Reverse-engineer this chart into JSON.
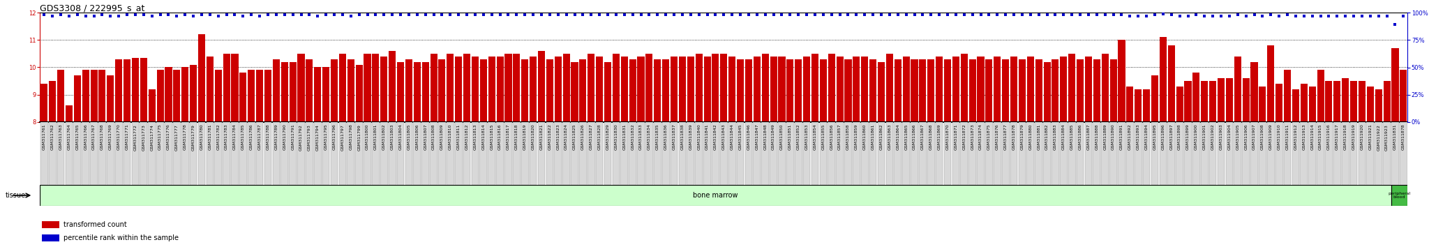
{
  "title": "GDS3308 / 222995_s_at",
  "samples": [
    "GSM311761",
    "GSM311762",
    "GSM311763",
    "GSM311764",
    "GSM311765",
    "GSM311766",
    "GSM311767",
    "GSM311768",
    "GSM311769",
    "GSM311770",
    "GSM311771",
    "GSM311772",
    "GSM311773",
    "GSM311774",
    "GSM311775",
    "GSM311776",
    "GSM311777",
    "GSM311778",
    "GSM311779",
    "GSM311780",
    "GSM311781",
    "GSM311782",
    "GSM311783",
    "GSM311784",
    "GSM311785",
    "GSM311786",
    "GSM311787",
    "GSM311788",
    "GSM311789",
    "GSM311790",
    "GSM311791",
    "GSM311792",
    "GSM311793",
    "GSM311794",
    "GSM311795",
    "GSM311796",
    "GSM311797",
    "GSM311798",
    "GSM311799",
    "GSM311800",
    "GSM311801",
    "GSM311802",
    "GSM311803",
    "GSM311804",
    "GSM311805",
    "GSM311806",
    "GSM311807",
    "GSM311808",
    "GSM311809",
    "GSM311810",
    "GSM311811",
    "GSM311812",
    "GSM311813",
    "GSM311814",
    "GSM311815",
    "GSM311816",
    "GSM311817",
    "GSM311818",
    "GSM311819",
    "GSM311820",
    "GSM311821",
    "GSM311822",
    "GSM311823",
    "GSM311824",
    "GSM311825",
    "GSM311826",
    "GSM311827",
    "GSM311828",
    "GSM311829",
    "GSM311830",
    "GSM311831",
    "GSM311832",
    "GSM311833",
    "GSM311834",
    "GSM311835",
    "GSM311836",
    "GSM311837",
    "GSM311838",
    "GSM311839",
    "GSM311840",
    "GSM311841",
    "GSM311842",
    "GSM311843",
    "GSM311844",
    "GSM311845",
    "GSM311846",
    "GSM311847",
    "GSM311848",
    "GSM311849",
    "GSM311850",
    "GSM311851",
    "GSM311852",
    "GSM311853",
    "GSM311854",
    "GSM311855",
    "GSM311856",
    "GSM311857",
    "GSM311858",
    "GSM311859",
    "GSM311860",
    "GSM311861",
    "GSM311862",
    "GSM311863",
    "GSM311864",
    "GSM311865",
    "GSM311866",
    "GSM311867",
    "GSM311868",
    "GSM311869",
    "GSM311870",
    "GSM311871",
    "GSM311872",
    "GSM311873",
    "GSM311874",
    "GSM311875",
    "GSM311876",
    "GSM311877",
    "GSM311878",
    "GSM311879",
    "GSM311880",
    "GSM311881",
    "GSM311882",
    "GSM311883",
    "GSM311884",
    "GSM311885",
    "GSM311886",
    "GSM311887",
    "GSM311888",
    "GSM311889",
    "GSM311890",
    "GSM311891",
    "GSM311892",
    "GSM311893",
    "GSM311894",
    "GSM311895",
    "GSM311896",
    "GSM311897",
    "GSM311898",
    "GSM311899",
    "GSM311900",
    "GSM311901",
    "GSM311902",
    "GSM311903",
    "GSM311904",
    "GSM311905",
    "GSM311906",
    "GSM311907",
    "GSM311908",
    "GSM311909",
    "GSM311910",
    "GSM311911",
    "GSM311912",
    "GSM311913",
    "GSM311914",
    "GSM311915",
    "GSM311916",
    "GSM311917",
    "GSM311918",
    "GSM311919",
    "GSM311920",
    "GSM311921",
    "GSM311922",
    "GSM311923",
    "GSM311831",
    "GSM311878"
  ],
  "bar_values": [
    9.4,
    9.5,
    9.9,
    8.6,
    9.7,
    9.9,
    9.9,
    9.9,
    9.7,
    10.3,
    10.3,
    10.35,
    10.35,
    9.2,
    9.9,
    10.0,
    9.9,
    10.0,
    10.1,
    11.2,
    10.4,
    9.9,
    10.5,
    10.5,
    9.8,
    9.9,
    9.9,
    9.9,
    10.3,
    10.2,
    10.2,
    10.5,
    10.3,
    10.0,
    10.0,
    10.3,
    10.5,
    10.3,
    10.1,
    10.5,
    10.5,
    10.4,
    10.6,
    10.2,
    10.3,
    10.2,
    10.2,
    10.5,
    10.3,
    10.5,
    10.4,
    10.5,
    10.4,
    10.3,
    10.4,
    10.4,
    10.5,
    10.5,
    10.3,
    10.4,
    10.6,
    10.3,
    10.4,
    10.5,
    10.2,
    10.3,
    10.5,
    10.4,
    10.2,
    10.5,
    10.4,
    10.3,
    10.4,
    10.5,
    10.3,
    10.3,
    10.4,
    10.4,
    10.4,
    10.5,
    10.4,
    10.5,
    10.5,
    10.4,
    10.3,
    10.3,
    10.4,
    10.5,
    10.4,
    10.4,
    10.3,
    10.3,
    10.4,
    10.5,
    10.3,
    10.5,
    10.4,
    10.3,
    10.4,
    10.4,
    10.3,
    10.2,
    10.5,
    10.3,
    10.4,
    10.3,
    10.3,
    10.3,
    10.4,
    10.3,
    10.4,
    10.5,
    10.3,
    10.4,
    10.3,
    10.4,
    10.3,
    10.4,
    10.3,
    10.4,
    10.3,
    10.2,
    10.3,
    10.4,
    10.5,
    10.3,
    10.4,
    10.3,
    10.5,
    10.3,
    11.0,
    9.3,
    9.2,
    9.2,
    9.7,
    11.1,
    10.8,
    9.3,
    9.5,
    9.8,
    9.5,
    9.5,
    9.6,
    9.6,
    10.4,
    9.6,
    10.2,
    9.3,
    10.8,
    9.4,
    9.9,
    9.2,
    9.4,
    9.3,
    9.9,
    9.5,
    9.5,
    9.6,
    9.5,
    9.5,
    9.3,
    9.2,
    9.5,
    10.7,
    9.9
  ],
  "percentile_values": [
    98,
    97,
    98,
    97,
    98,
    97,
    97,
    98,
    97,
    97,
    98,
    98,
    98,
    97,
    98,
    98,
    97,
    98,
    97,
    98,
    98,
    97,
    98,
    98,
    97,
    98,
    97,
    98,
    98,
    98,
    98,
    98,
    98,
    97,
    98,
    98,
    98,
    97,
    98,
    98,
    98,
    98,
    98,
    98,
    98,
    98,
    98,
    98,
    98,
    98,
    98,
    98,
    98,
    98,
    98,
    98,
    98,
    98,
    98,
    98,
    98,
    98,
    98,
    98,
    98,
    98,
    98,
    98,
    98,
    98,
    98,
    98,
    98,
    98,
    98,
    98,
    98,
    98,
    98,
    98,
    98,
    98,
    98,
    98,
    98,
    98,
    98,
    98,
    98,
    98,
    98,
    98,
    98,
    98,
    98,
    98,
    98,
    98,
    98,
    98,
    98,
    98,
    98,
    98,
    98,
    98,
    98,
    98,
    98,
    98,
    98,
    98,
    98,
    98,
    98,
    98,
    98,
    98,
    98,
    98,
    98,
    98,
    98,
    98,
    98,
    98,
    98,
    98,
    98,
    98,
    98,
    97,
    97,
    97,
    98,
    99,
    98,
    97,
    97,
    98,
    97,
    97,
    97,
    97,
    98,
    97,
    98,
    97,
    98,
    97,
    98,
    97,
    97,
    97,
    97,
    97,
    97,
    97,
    97,
    97,
    97,
    97,
    97,
    89,
    97
  ],
  "ylim_left": [
    8.0,
    12.0
  ],
  "ylim_right": [
    0,
    100
  ],
  "yticks_left": [
    8,
    9,
    10,
    11,
    12
  ],
  "yticks_right": [
    0,
    25,
    50,
    75,
    100
  ],
  "bar_color": "#cc0000",
  "dot_color": "#0000cc",
  "bar_baseline": 8.0,
  "bone_marrow_count": 163,
  "total_samples": 165,
  "tissue_bone_marrow_label": "bone marrow",
  "tissue_periph_label": "peripheral\nblood",
  "tissue_bone_marrow_color": "#ccffcc",
  "tissue_periph_color": "#44bb44",
  "tissue_label": "tissue",
  "legend_items": [
    {
      "color": "#cc0000",
      "label": "transformed count"
    },
    {
      "color": "#0000cc",
      "label": "percentile rank within the sample"
    }
  ],
  "title_fontsize": 9,
  "tick_fontsize": 4.5,
  "label_fontsize": 7,
  "axis_color_left": "#cc0000",
  "axis_color_right": "#0000cc"
}
